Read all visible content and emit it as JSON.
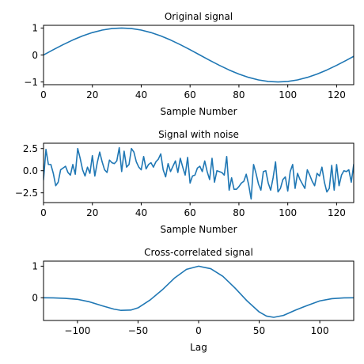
{
  "chart_data": [
    {
      "type": "line",
      "title": "Original signal",
      "xlabel": "Sample Number",
      "ylabel": "",
      "xlim": [
        0,
        127
      ],
      "ylim": [
        -1.1,
        1.1
      ],
      "xticks": [
        0,
        20,
        40,
        60,
        80,
        100,
        120
      ],
      "xtick_labels": [
        "0",
        "20",
        "40",
        "60",
        "80",
        "100",
        "120"
      ],
      "yticks": [
        -1,
        0,
        1
      ],
      "ytick_labels": [
        "−1",
        "0",
        "1"
      ],
      "grid": false,
      "series": [
        {
          "color": "#1f77b4",
          "x": [
            0,
            4,
            8,
            12,
            16,
            20,
            24,
            28,
            32,
            36,
            40,
            44,
            48,
            52,
            56,
            60,
            64,
            68,
            72,
            76,
            80,
            84,
            88,
            92,
            96,
            100,
            104,
            108,
            112,
            116,
            120,
            124,
            127
          ],
          "y": [
            0.0,
            0.195,
            0.383,
            0.556,
            0.707,
            0.831,
            0.924,
            0.981,
            1.0,
            0.981,
            0.924,
            0.831,
            0.707,
            0.556,
            0.383,
            0.195,
            0.0,
            -0.195,
            -0.383,
            -0.556,
            -0.707,
            -0.831,
            -0.924,
            -0.981,
            -1.0,
            -0.981,
            -0.924,
            -0.831,
            -0.707,
            -0.556,
            -0.383,
            -0.195,
            -0.049
          ]
        }
      ]
    },
    {
      "type": "line",
      "title": "Signal with noise",
      "xlabel": "Sample Number",
      "ylabel": "",
      "xlim": [
        0,
        127
      ],
      "ylim": [
        -3.6,
        3.1
      ],
      "xticks": [
        0,
        20,
        40,
        60,
        80,
        100,
        120
      ],
      "xtick_labels": [
        "0",
        "20",
        "40",
        "60",
        "80",
        "100",
        "120"
      ],
      "yticks": [
        -2.5,
        0,
        2.5
      ],
      "ytick_labels": [
        "−2.5",
        "0.0",
        "2.5"
      ],
      "grid": false,
      "series": [
        {
          "color": "#1f77b4",
          "x": [
            0,
            1,
            2,
            3,
            4,
            5,
            6,
            7,
            8,
            9,
            10,
            11,
            12,
            13,
            14,
            15,
            16,
            17,
            18,
            19,
            20,
            21,
            22,
            23,
            24,
            25,
            26,
            27,
            28,
            29,
            30,
            31,
            32,
            33,
            34,
            35,
            36,
            37,
            38,
            39,
            40,
            41,
            42,
            43,
            44,
            45,
            46,
            47,
            48,
            49,
            50,
            51,
            52,
            53,
            54,
            55,
            56,
            57,
            58,
            59,
            60,
            61,
            62,
            63,
            64,
            65,
            66,
            67,
            68,
            69,
            70,
            71,
            72,
            73,
            74,
            75,
            76,
            77,
            78,
            79,
            80,
            81,
            82,
            83,
            84,
            85,
            86,
            87,
            88,
            89,
            90,
            91,
            92,
            93,
            94,
            95,
            96,
            97,
            98,
            99,
            100,
            101,
            102,
            103,
            104,
            105,
            106,
            107,
            108,
            109,
            110,
            111,
            112,
            113,
            114,
            115,
            116,
            117,
            118,
            119,
            120,
            121,
            122,
            123,
            124,
            125,
            126,
            127
          ],
          "y": [
            -1.0,
            2.4,
            0.7,
            0.7,
            -0.3,
            -1.7,
            -1.3,
            0.1,
            0.3,
            0.5,
            -0.2,
            -0.5,
            0.7,
            -0.4,
            2.5,
            1.4,
            0.1,
            -0.6,
            0.4,
            -0.3,
            1.7,
            -0.6,
            0.9,
            2.1,
            1.0,
            0.1,
            -0.2,
            1.2,
            0.9,
            0.8,
            1.1,
            2.6,
            -0.1,
            2.2,
            0.4,
            0.7,
            2.5,
            2.1,
            1.0,
            0.4,
            0.1,
            1.6,
            0.2,
            0.7,
            0.9,
            0.4,
            1.0,
            1.3,
            1.9,
            0.1,
            -0.7,
            0.8,
            -0.1,
            0.5,
            1.1,
            -0.2,
            1.4,
            0.4,
            -0.5,
            1.5,
            -1.4,
            -0.6,
            -0.5,
            0.3,
            0.5,
            -0.1,
            1.1,
            -0.1,
            -1.0,
            1.4,
            -1.3,
            0.0,
            -0.1,
            -0.2,
            -0.5,
            1.6,
            -2.2,
            -0.8,
            -2.1,
            -2.1,
            -1.8,
            -1.4,
            -1.2,
            -0.4,
            -1.6,
            -3.2,
            0.7,
            -0.3,
            -1.5,
            -2.2,
            -0.1,
            0.0,
            -1.4,
            -2.2,
            -0.8,
            1.0,
            -2.4,
            -2.0,
            -1.0,
            -0.7,
            -2.3,
            -0.1,
            0.7,
            -2.0,
            -0.3,
            -1.0,
            -1.5,
            -2.0,
            0.1,
            -0.5,
            -1.2,
            -1.7,
            -0.3,
            -0.6,
            0.4,
            -1.3,
            -2.4,
            -2.0,
            0.6,
            -2.2,
            0.7,
            -1.7,
            -0.5,
            0.0,
            -0.1,
            0.1,
            -1.3,
            0.7
          ]
        }
      ]
    },
    {
      "type": "line",
      "title": "Cross-correlated signal",
      "xlabel": "Lag",
      "ylabel": "",
      "xlim": [
        -128,
        128
      ],
      "ylim": [
        -0.72,
        1.16
      ],
      "xticks": [
        -100,
        -50,
        0,
        50,
        100
      ],
      "xtick_labels": [
        "−100",
        "−50",
        "0",
        "50",
        "100"
      ],
      "yticks": [
        0,
        1
      ],
      "ytick_labels": [
        "0",
        "1"
      ],
      "grid": false,
      "series": [
        {
          "color": "#1f77b4",
          "x": [
            -128,
            -120,
            -110,
            -100,
            -90,
            -80,
            -70,
            -64,
            -56,
            -50,
            -40,
            -30,
            -20,
            -10,
            0,
            10,
            20,
            30,
            40,
            50,
            56,
            62,
            70,
            80,
            90,
            100,
            110,
            120,
            128
          ],
          "y": [
            0.0,
            -0.005,
            -0.02,
            -0.05,
            -0.13,
            -0.25,
            -0.36,
            -0.4,
            -0.39,
            -0.32,
            -0.07,
            0.25,
            0.62,
            0.9,
            1.0,
            0.92,
            0.68,
            0.31,
            -0.1,
            -0.45,
            -0.58,
            -0.62,
            -0.56,
            -0.39,
            -0.24,
            -0.1,
            -0.03,
            -0.005,
            0.0
          ]
        }
      ]
    }
  ]
}
